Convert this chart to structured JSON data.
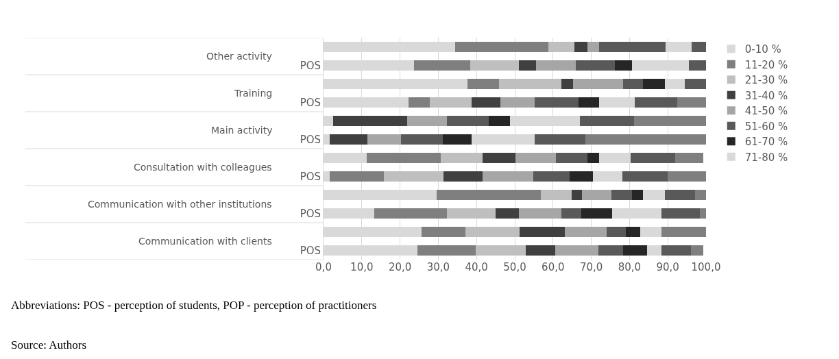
{
  "chart_data": {
    "type": "bar",
    "orientation": "horizontal",
    "stacked": true,
    "categories": [
      null,
      "POS",
      null,
      "POS",
      null,
      "POS",
      null,
      "POS",
      null,
      "POS",
      null,
      "POS"
    ],
    "series": [
      {
        "name": "0-10 %",
        "color": "#d9d9d9",
        "values": [
          34.4,
          23.6,
          37.7,
          22.2,
          2.5,
          1.7,
          11.2,
          1.7,
          29.5,
          13.2,
          25.6,
          24.6
        ]
      },
      {
        "name": "11-20 %",
        "color": "#7f7f7f",
        "values": [
          24.4,
          14.8,
          8.2,
          5.6,
          0,
          0,
          19.4,
          14.1,
          27.3,
          19.0,
          11.5,
          15.1
        ]
      },
      {
        "name": "21-30 %",
        "color": "#bfbfbf",
        "values": [
          6.8,
          12.7,
          16.2,
          10.9,
          0,
          0,
          10.9,
          15.5,
          8.1,
          12.7,
          14.2,
          13.1
        ]
      },
      {
        "name": "31-40 %",
        "color": "#404040",
        "values": [
          3.4,
          4.5,
          3.1,
          7.6,
          19.3,
          9.7,
          8.6,
          10.2,
          2.7,
          6.2,
          11.7,
          7.7
        ]
      },
      {
        "name": "41-50 %",
        "color": "#a6a6a6",
        "values": [
          3.1,
          10.3,
          13.1,
          8.9,
          10.4,
          8.9,
          10.6,
          13.4,
          7.6,
          11.0,
          11.0,
          11.3
        ]
      },
      {
        "name": "51-60 %",
        "color": "#595959",
        "values": [
          17.4,
          10.3,
          5.2,
          11.4,
          11.0,
          10.8,
          8.3,
          9.5,
          5.5,
          5.2,
          5.0,
          6.5
        ]
      },
      {
        "name": "61-70 %",
        "color": "#262626",
        "values": [
          0,
          4.5,
          5.7,
          5.5,
          5.5,
          7.6,
          3.1,
          6.0,
          2.8,
          8.1,
          3.8,
          6.2
        ]
      },
      {
        "name": "71-80 %",
        "color": "#d9d9d9",
        "values": [
          6.7,
          14.8,
          5.3,
          9.3,
          18.4,
          16.5,
          8.1,
          7.8,
          5.7,
          12.9,
          5.5,
          3.8
        ]
      },
      {
        "color": "#595959",
        "values": [
          3.8,
          4.5,
          5.5,
          11.0,
          14.1,
          13.3,
          11.7,
          11.8,
          8.0,
          10.0,
          0,
          7.8
        ]
      },
      {
        "color": "#7f7f7f",
        "values": [
          0,
          0,
          0,
          7.6,
          18.8,
          31.5,
          7.4,
          10.0,
          2.8,
          1.7,
          11.7,
          3.2
        ]
      }
    ],
    "xlim": [
      0,
      100
    ],
    "xticks": [
      {
        "value": 0,
        "label": "0,0"
      },
      {
        "value": 10,
        "label": "10,0"
      },
      {
        "value": 20,
        "label": "20,0"
      },
      {
        "value": 30,
        "label": "30,0"
      },
      {
        "value": 40,
        "label": "40,0"
      },
      {
        "value": 50,
        "label": "50,0"
      },
      {
        "value": 60,
        "label": "60,0"
      },
      {
        "value": 70,
        "label": "70,0"
      },
      {
        "value": 80,
        "label": "80,0"
      },
      {
        "value": 90,
        "label": "90,0"
      },
      {
        "value": 100,
        "label": "100,0"
      }
    ],
    "grid": "x",
    "legend": "right",
    "annotations": [
      "Other activity",
      "Training",
      "Main activity",
      "Consultation with colleagues",
      "Communication with other institutions",
      "Communication with clients",
      "Abbreviations: POS - perception of students, POP - perception of practitioners",
      "Source: Authors"
    ]
  }
}
